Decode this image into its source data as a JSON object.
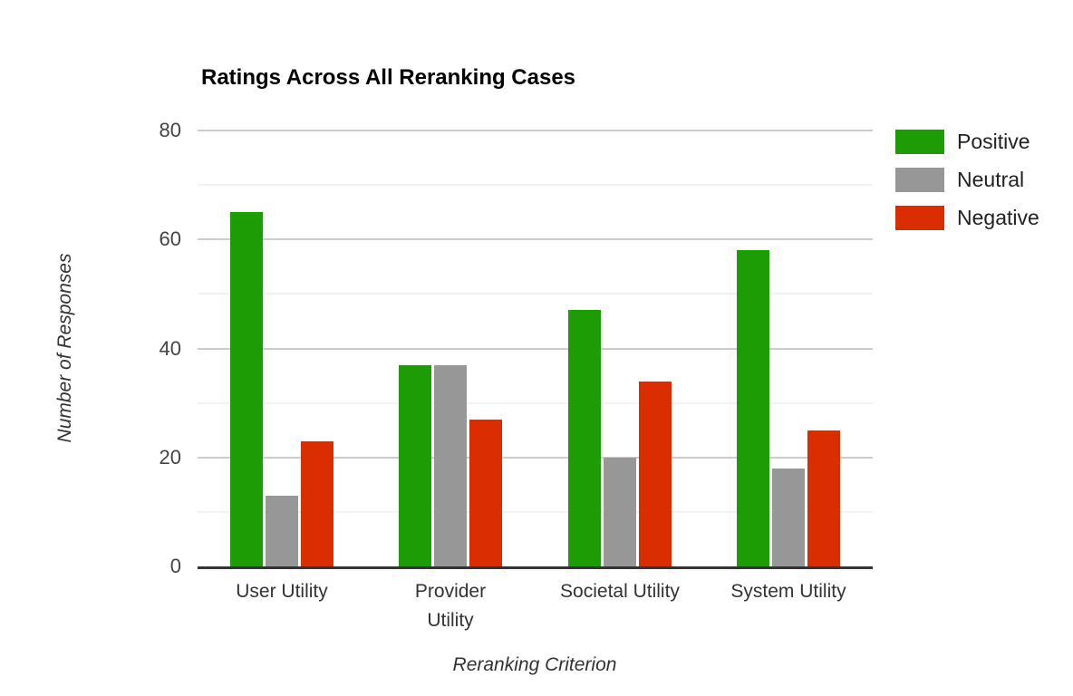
{
  "chart_data": {
    "type": "bar",
    "title": "Ratings Across All Reranking Cases",
    "xlabel": "Reranking Criterion",
    "ylabel": "Number of Responses",
    "categories": [
      "User Utility",
      "Provider Utility",
      "Societal Utility",
      "System Utility"
    ],
    "category_display": [
      "User Utility",
      "Provider\nUtility",
      "Societal Utility",
      "System Utility"
    ],
    "series": [
      {
        "name": "Positive",
        "color": "#1e9c05",
        "values": [
          65,
          37,
          47,
          58
        ]
      },
      {
        "name": "Neutral",
        "color": "#979797",
        "values": [
          13,
          37,
          20,
          18
        ]
      },
      {
        "name": "Negative",
        "color": "#da2d02",
        "values": [
          23,
          27,
          34,
          25
        ]
      }
    ],
    "ylim": [
      0,
      80
    ],
    "yticks": [
      0,
      20,
      40,
      60,
      80
    ],
    "ytick_step": 20,
    "minor_tick_step": 10,
    "grid": true,
    "legend_position": "right"
  },
  "style": {
    "background": "#ffffff",
    "major_grid_color": "#cccccc",
    "minor_grid_color": "#f2f2f2",
    "axis_line_color": "#333333",
    "title_color": "#000000",
    "tick_label_color": "#444444",
    "axis_title_color": "#333333",
    "legend_text_color": "#222222"
  }
}
